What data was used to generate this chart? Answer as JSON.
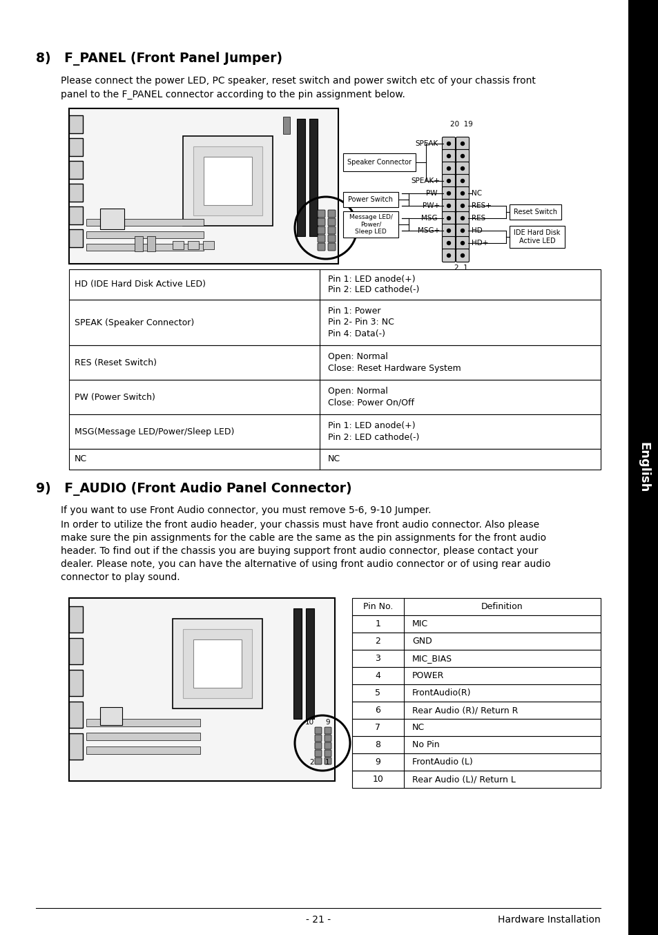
{
  "title_8": "8)   F_PANEL (Front Panel Jumper)",
  "body_8_line1": "Please connect the power LED, PC speaker, reset switch and power switch etc of your chassis front",
  "body_8_line2": "panel to the F_PANEL connector according to the pin assignment below.",
  "table_8_rows": [
    [
      "HD (IDE Hard Disk Active LED)",
      "Pin 1: LED anode(+)\nPin 2: LED cathode(-)"
    ],
    [
      "SPEAK (Speaker Connector)",
      "Pin 1: Power\nPin 2- Pin 3: NC\nPin 4: Data(-)"
    ],
    [
      "RES (Reset Switch)",
      "Open: Normal\nClose: Reset Hardware System"
    ],
    [
      "PW (Power Switch)",
      "Open: Normal\nClose: Power On/Off"
    ],
    [
      "MSG(Message LED/Power/Sleep LED)",
      "Pin 1: LED anode(+)\nPin 2: LED cathode(-)"
    ],
    [
      "NC",
      "NC"
    ]
  ],
  "title_9": "9)   F_AUDIO (Front Audio Panel Connector)",
  "body_9_line1": "If you want to use Front Audio connector, you must remove 5-6, 9-10 Jumper.",
  "body_9_lines": [
    "In order to utilize the front audio header, your chassis must have front audio connector. Also please",
    "make sure the pin assignments for the cable are the same as the pin assignments for the front audio",
    "header. To find out if the chassis you are buying support front audio connector, please contact your",
    "dealer. Please note, you can have the alternative of using front audio connector or of using rear audio",
    "connector to play sound."
  ],
  "audio_table_headers": [
    "Pin No.",
    "Definition"
  ],
  "audio_table_rows": [
    [
      "1",
      "MIC"
    ],
    [
      "2",
      "GND"
    ],
    [
      "3",
      "MIC_BIAS"
    ],
    [
      "4",
      "POWER"
    ],
    [
      "5",
      "FrontAudio(R)"
    ],
    [
      "6",
      "Rear Audio (R)/ Return R"
    ],
    [
      "7",
      "NC"
    ],
    [
      "8",
      "No Pin"
    ],
    [
      "9",
      "FrontAudio (L)"
    ],
    [
      "10",
      "Rear Audio (L)/ Return L"
    ]
  ],
  "footer_center": "- 21 -",
  "footer_right": "Hardware Installation",
  "sidebar_text": "English",
  "table8_row_heights": [
    44,
    66,
    50,
    50,
    50,
    30
  ],
  "pin_connector_labels_left": [
    "SPEAK-",
    "SPEAK+",
    "",
    "PW-",
    "PW+",
    "MSG-",
    "MSG+",
    "",
    "",
    ""
  ],
  "pin_connector_labels_right": [
    "NC",
    "",
    "RES+",
    "RES-",
    "HD-",
    "HD+",
    "",
    "",
    "",
    ""
  ]
}
